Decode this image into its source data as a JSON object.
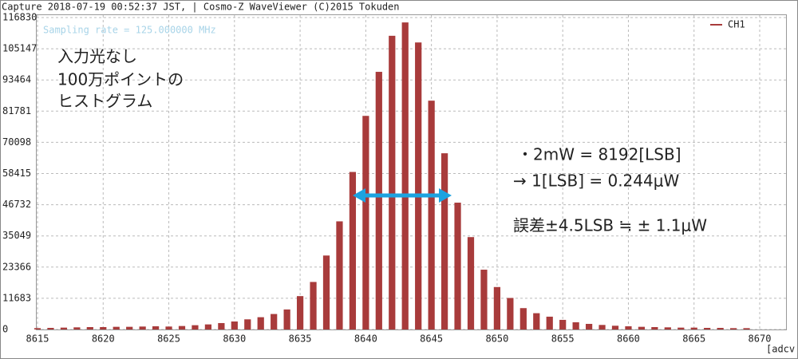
{
  "header": "Capture 2018-07-19 00:52:37 JST, | Cosmo-Z WaveViewer (C)2015 Tokuden",
  "chart_data": {
    "type": "bar",
    "subtitle": "Sampling rate = 125.000000 MHz",
    "x_label": "[adcv",
    "x": [
      8615,
      8616,
      8617,
      8618,
      8619,
      8620,
      8621,
      8622,
      8623,
      8624,
      8625,
      8626,
      8627,
      8628,
      8629,
      8630,
      8631,
      8632,
      8633,
      8634,
      8635,
      8636,
      8637,
      8638,
      8639,
      8640,
      8641,
      8642,
      8643,
      8644,
      8645,
      8646,
      8647,
      8648,
      8649,
      8650,
      8651,
      8652,
      8653,
      8654,
      8655,
      8656,
      8657,
      8658,
      8659,
      8660,
      8661,
      8662,
      8663,
      8664,
      8665,
      8666,
      8667,
      8668,
      8669
    ],
    "series": [
      {
        "name": "CH1",
        "color": "#a83b3b",
        "values": [
          500,
          600,
          700,
          800,
          900,
          900,
          1000,
          1000,
          1100,
          1200,
          1100,
          1300,
          1600,
          1900,
          2400,
          3000,
          3800,
          4600,
          5800,
          7500,
          12500,
          17800,
          27700,
          40500,
          59000,
          80000,
          96500,
          110000,
          115000,
          107500,
          85700,
          66000,
          47500,
          34600,
          22400,
          15900,
          11800,
          8000,
          6100,
          4800,
          3600,
          2700,
          2100,
          1700,
          1400,
          1200,
          1000,
          900,
          800,
          700,
          700,
          600,
          600,
          500,
          500
        ]
      }
    ],
    "xlim": [
      8615,
      8670
    ],
    "xticks": [
      8615,
      8620,
      8625,
      8630,
      8635,
      8640,
      8645,
      8650,
      8655,
      8660,
      8665,
      8670
    ],
    "ylim": [
      0,
      116830
    ],
    "yticks": [
      0,
      11683,
      23366,
      35049,
      46732,
      58415,
      70098,
      81781,
      93464,
      105147,
      116830
    ],
    "grid": true,
    "legend": "top-right",
    "annotations": [
      "入力光なし",
      "100万ポイントの",
      "ヒストグラム",
      "・2mW = 8192[LSB]",
      "→ 1[LSB] = 0.244μW",
      "誤差±4.5LSB ≒ ± 1.1μW"
    ]
  }
}
